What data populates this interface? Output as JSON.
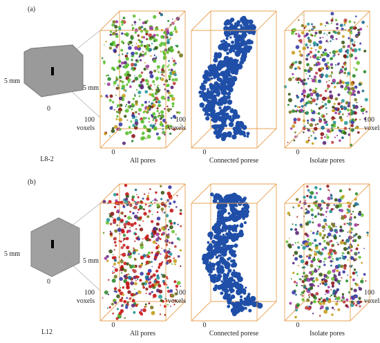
{
  "panels": [
    {
      "label": "(a)",
      "sample": {
        "name": "L8-2",
        "scale_left": "5 mm",
        "scale_right": "5 mm",
        "origin": "0"
      },
      "views": [
        {
          "caption": "All pores",
          "scale": [
            "100",
            "voxels"
          ],
          "origin": "0"
        },
        {
          "caption": "Connected porese",
          "scale": [
            "100",
            "voxels"
          ],
          "origin": "0"
        },
        {
          "caption": "Isolate pores",
          "scale": [
            "100",
            "voxels"
          ],
          "origin": "0"
        }
      ]
    },
    {
      "label": "(b)",
      "sample": {
        "name": "L12",
        "scale_left": "5 mm",
        "scale_right": "5 mm",
        "origin": "0"
      },
      "views": [
        {
          "caption": "All pores",
          "scale": [
            "100",
            "voxels"
          ],
          "origin": "0"
        },
        {
          "caption": "Connected porese",
          "scale": [
            "100",
            "voxels"
          ],
          "origin": "0"
        },
        {
          "caption": "Isolate pores",
          "scale": [
            "100",
            "voxels"
          ],
          "origin": "0"
        }
      ]
    }
  ]
}
